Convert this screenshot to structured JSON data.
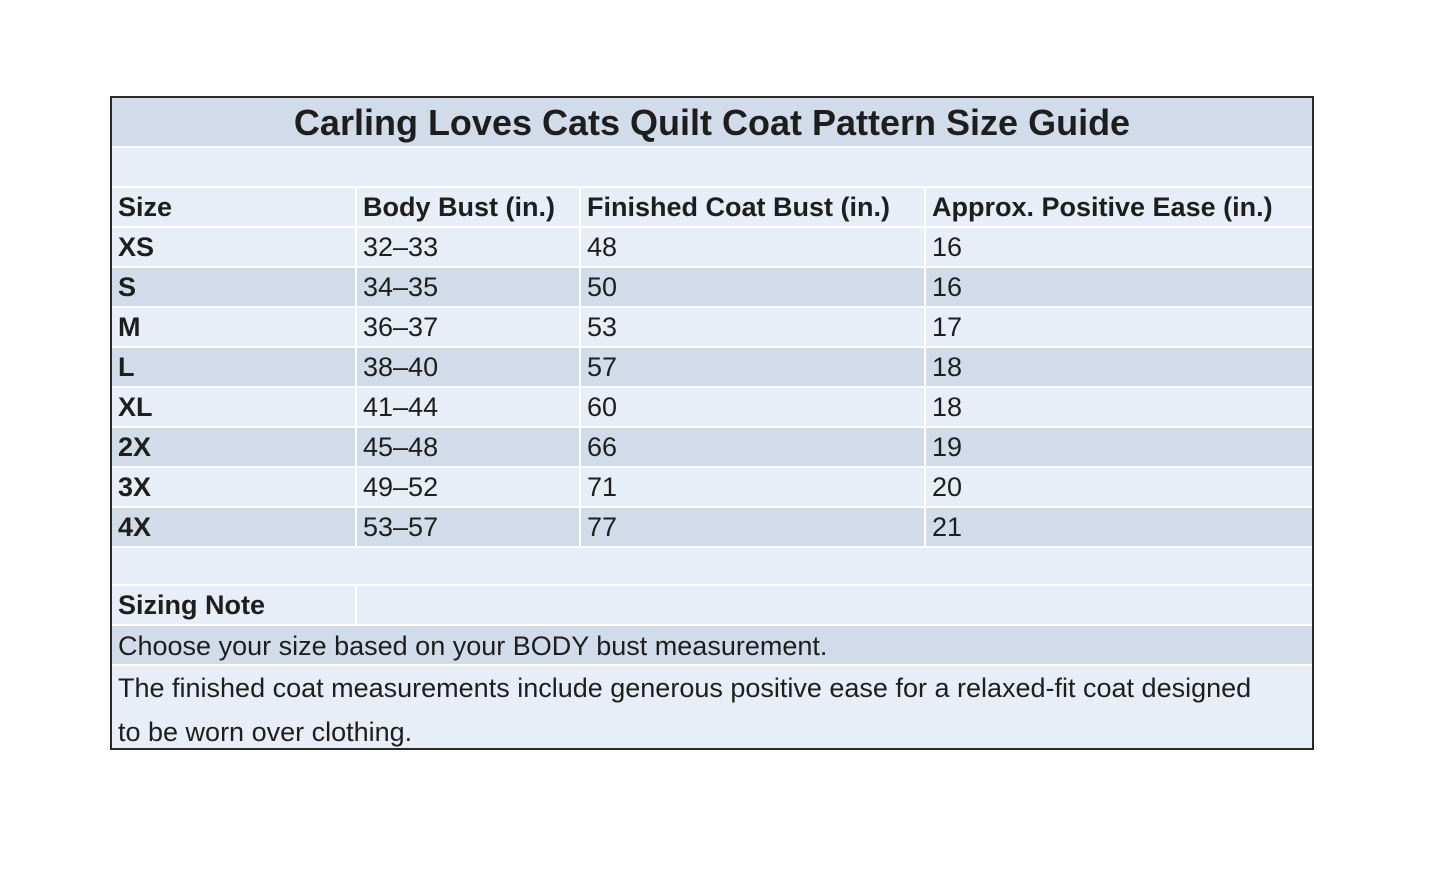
{
  "title": "Carling Loves Cats Quilt Coat Pattern Size Guide",
  "table": {
    "headers": [
      "Size",
      "Body Bust (in.)",
      "Finished Coat Bust (in.)",
      "Approx. Positive Ease (in.)"
    ],
    "rows": [
      [
        "XS",
        "32–33",
        "48",
        "16"
      ],
      [
        "S",
        "34–35",
        "50",
        "16"
      ],
      [
        "M",
        "36–37",
        "53",
        "17"
      ],
      [
        "L",
        "38–40",
        "57",
        "18"
      ],
      [
        "XL",
        "41–44",
        "60",
        "18"
      ],
      [
        "2X",
        "45–48",
        "66",
        "19"
      ],
      [
        "3X",
        "49–52",
        "71",
        "20"
      ],
      [
        "4X",
        "53–57",
        "77",
        "21"
      ]
    ]
  },
  "note": {
    "heading": "Sizing Note",
    "line1": "Choose your size based on your BODY bust measurement.",
    "line2": "The finished coat measurements include generous positive ease for a relaxed-fit coat designed to be worn over clothing."
  },
  "colors": {
    "band_dark": "#d2dbea",
    "band_light": "#e8eef8",
    "border": "#2a2a2a"
  }
}
